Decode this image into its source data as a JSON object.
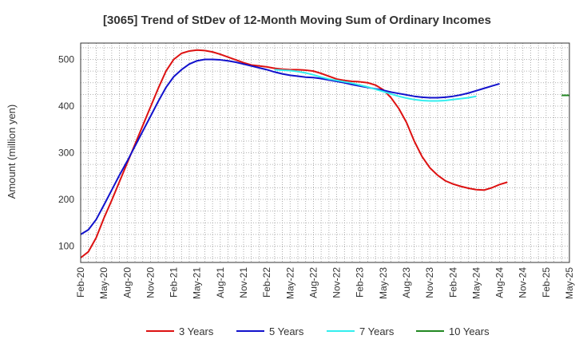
{
  "chart_data": {
    "type": "line",
    "title": "[3065]  Trend of StDev of 12-Month Moving Sum of Ordinary Incomes",
    "xlabel": "",
    "ylabel": "Amount (million yen)",
    "ylim": [
      65,
      535
    ],
    "yticks": [
      100,
      200,
      300,
      400,
      500
    ],
    "xlim": [
      0,
      63
    ],
    "xtick_labels": [
      "Feb-20",
      "May-20",
      "Aug-20",
      "Nov-20",
      "Feb-21",
      "May-21",
      "Aug-21",
      "Nov-21",
      "Feb-22",
      "May-22",
      "Aug-22",
      "Nov-22",
      "Feb-23",
      "May-23",
      "Aug-23",
      "Nov-23",
      "Feb-24",
      "May-24",
      "Aug-24",
      "Nov-24",
      "Feb-25",
      "May-25"
    ],
    "grid": true,
    "legend_position": "bottom",
    "series": [
      {
        "name": "3 Years",
        "color": "#dd1111",
        "x_start": 0,
        "values": [
          75,
          88,
          118,
          160,
          198,
          238,
          278,
          318,
          358,
          398,
          438,
          475,
          500,
          513,
          518,
          520,
          519,
          516,
          511,
          505,
          499,
          493,
          488,
          486,
          484,
          481,
          479,
          478,
          478,
          477,
          475,
          470,
          464,
          458,
          455,
          453,
          452,
          450,
          445,
          435,
          418,
          395,
          365,
          325,
          292,
          268,
          252,
          240,
          233,
          228,
          224,
          221,
          220,
          225,
          232,
          237
        ]
      },
      {
        "name": "5 Years",
        "color": "#1111cc",
        "x_start": 0,
        "values": [
          125,
          135,
          157,
          188,
          220,
          252,
          282,
          314,
          346,
          378,
          410,
          440,
          463,
          478,
          490,
          497,
          500,
          500,
          499,
          497,
          494,
          490,
          486,
          482,
          478,
          473,
          469,
          466,
          464,
          462,
          461,
          459,
          456,
          453,
          450,
          446,
          443,
          440,
          437,
          434,
          430,
          427,
          424,
          421,
          419,
          418,
          418,
          419,
          421,
          424,
          428,
          433,
          438,
          443,
          448
        ]
      },
      {
        "name": "7 Years",
        "color": "#33eeee",
        "x_start": 25,
        "values": [
          478,
          477,
          476,
          474,
          471,
          467,
          462,
          458,
          455,
          452,
          449,
          445,
          441,
          436,
          431,
          426,
          421,
          417,
          414,
          412,
          411,
          411,
          412,
          414,
          416,
          418,
          421
        ]
      },
      {
        "name": "10 Years",
        "color": "#228822",
        "x_start": 62,
        "values": [
          423,
          423
        ]
      }
    ]
  }
}
